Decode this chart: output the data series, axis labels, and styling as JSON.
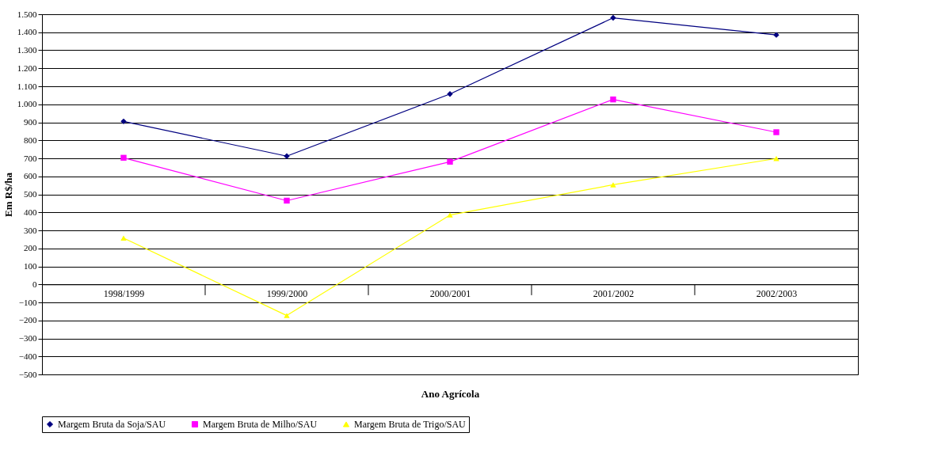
{
  "chart_data": {
    "type": "line",
    "xlabel": "Ano Agrícola",
    "ylabel": "Em R$/ha",
    "categories": [
      "1998/1999",
      "1999/2000",
      "2000/2001",
      "2001/2002",
      "2002/2003"
    ],
    "series": [
      {
        "name": "Margem Bruta da Soja/SAU",
        "color": "#000080",
        "marker": "diamond",
        "values": [
          905,
          712,
          1057,
          1480,
          1385
        ]
      },
      {
        "name": "Margem Bruta de Milho/SAU",
        "color": "#ff00ff",
        "marker": "square",
        "values": [
          703,
          465,
          681,
          1027,
          845
        ]
      },
      {
        "name": "Margem Bruta de Trigo/SAU",
        "color": "#ffff00",
        "marker": "triangle",
        "values": [
          257,
          -173,
          385,
          553,
          699
        ]
      }
    ],
    "ylim": [
      -500,
      1500
    ],
    "yticks": [
      -500,
      -400,
      -300,
      -200,
      -100,
      0,
      100,
      200,
      300,
      400,
      500,
      600,
      700,
      800,
      900,
      {
        "value": 1000,
        "label": "1.000"
      },
      {
        "value": 1100,
        "label": "1.100"
      },
      {
        "value": 1200,
        "label": "1.200"
      },
      {
        "value": 1300,
        "label": "1.300"
      },
      {
        "value": 1400,
        "label": "1.400"
      },
      {
        "value": 1500,
        "label": "1.500"
      }
    ],
    "grid": "y",
    "legend": "bottom",
    "line_style": "solid"
  }
}
